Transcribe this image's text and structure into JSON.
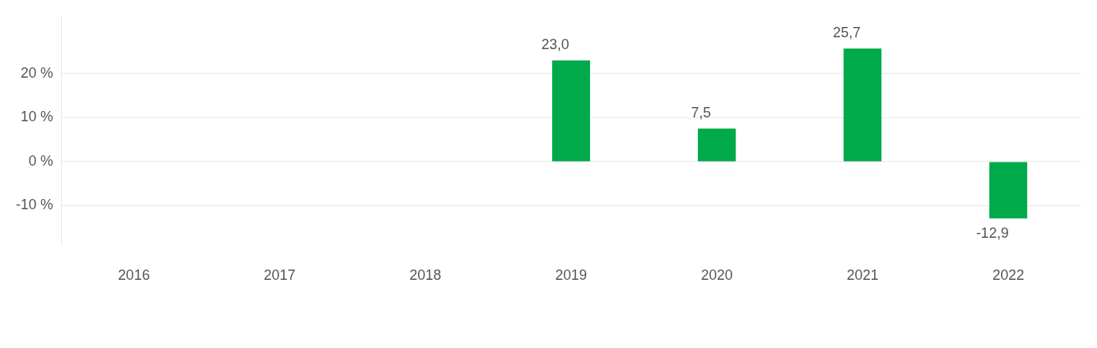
{
  "chart_data": {
    "type": "bar",
    "categories": [
      "2016",
      "2017",
      "2018",
      "2019",
      "2020",
      "2021",
      "2022"
    ],
    "values": [
      null,
      null,
      null,
      23.0,
      7.5,
      25.7,
      -12.9
    ],
    "value_labels": [
      null,
      null,
      null,
      "23,0",
      "7,5",
      "25,7",
      "-12,9"
    ],
    "color": "#00a94a",
    "ylim": [
      -19,
      33
    ],
    "yticks": [
      {
        "value": -10,
        "label": "-10 %"
      },
      {
        "value": 0,
        "label": "0 %"
      },
      {
        "value": 10,
        "label": "10 %"
      },
      {
        "value": 20,
        "label": "20 %"
      }
    ],
    "grid": "y",
    "legend": false
  }
}
